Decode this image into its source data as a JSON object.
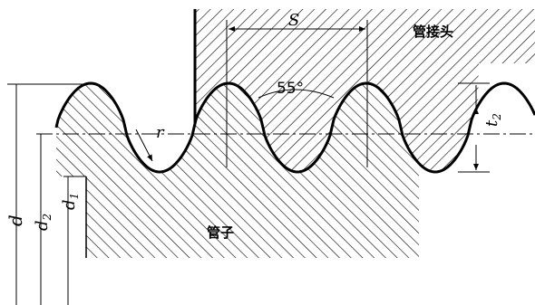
{
  "labels": {
    "pitch": "S",
    "fitting": "管接头",
    "angle": "55°",
    "radius": "r",
    "depth": {
      "main": "t",
      "sub": "2"
    },
    "major": "d",
    "pitch_diameter": {
      "main": "d",
      "sub": "2"
    },
    "minor": {
      "main": "d",
      "sub": "1"
    },
    "pipe": "管子"
  }
}
